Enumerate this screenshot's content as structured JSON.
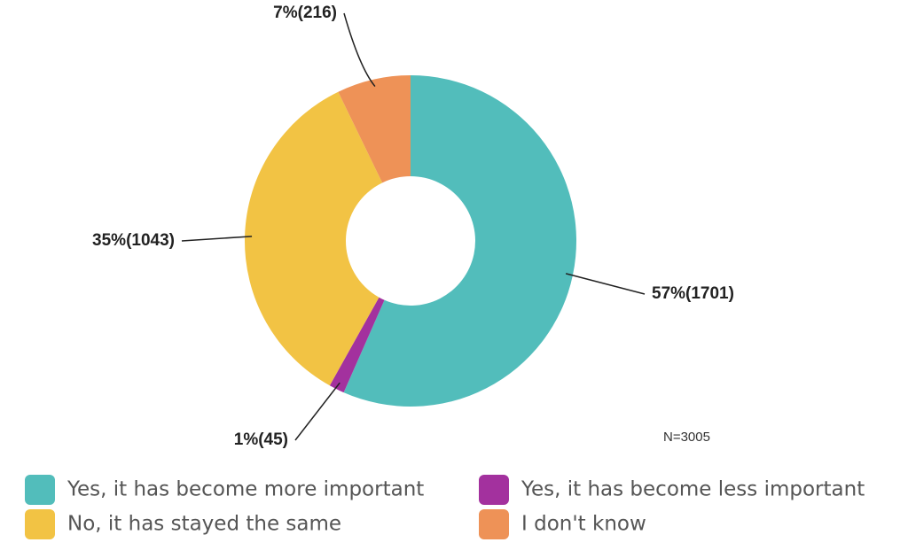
{
  "chart_data": {
    "type": "donut",
    "categories": [
      "Yes, it has become more important",
      "Yes, it has become less important",
      "No, it has stayed the same",
      "I don't know"
    ],
    "values": [
      1701,
      45,
      1043,
      216
    ],
    "value_labels": [
      "57%(1701)",
      "1%(45)",
      "35%(1043)",
      "7%(216)"
    ],
    "colors": [
      "#52bdbb",
      "#a3319e",
      "#f2c344",
      "#ee9257"
    ],
    "annotation": "N=3005"
  }
}
